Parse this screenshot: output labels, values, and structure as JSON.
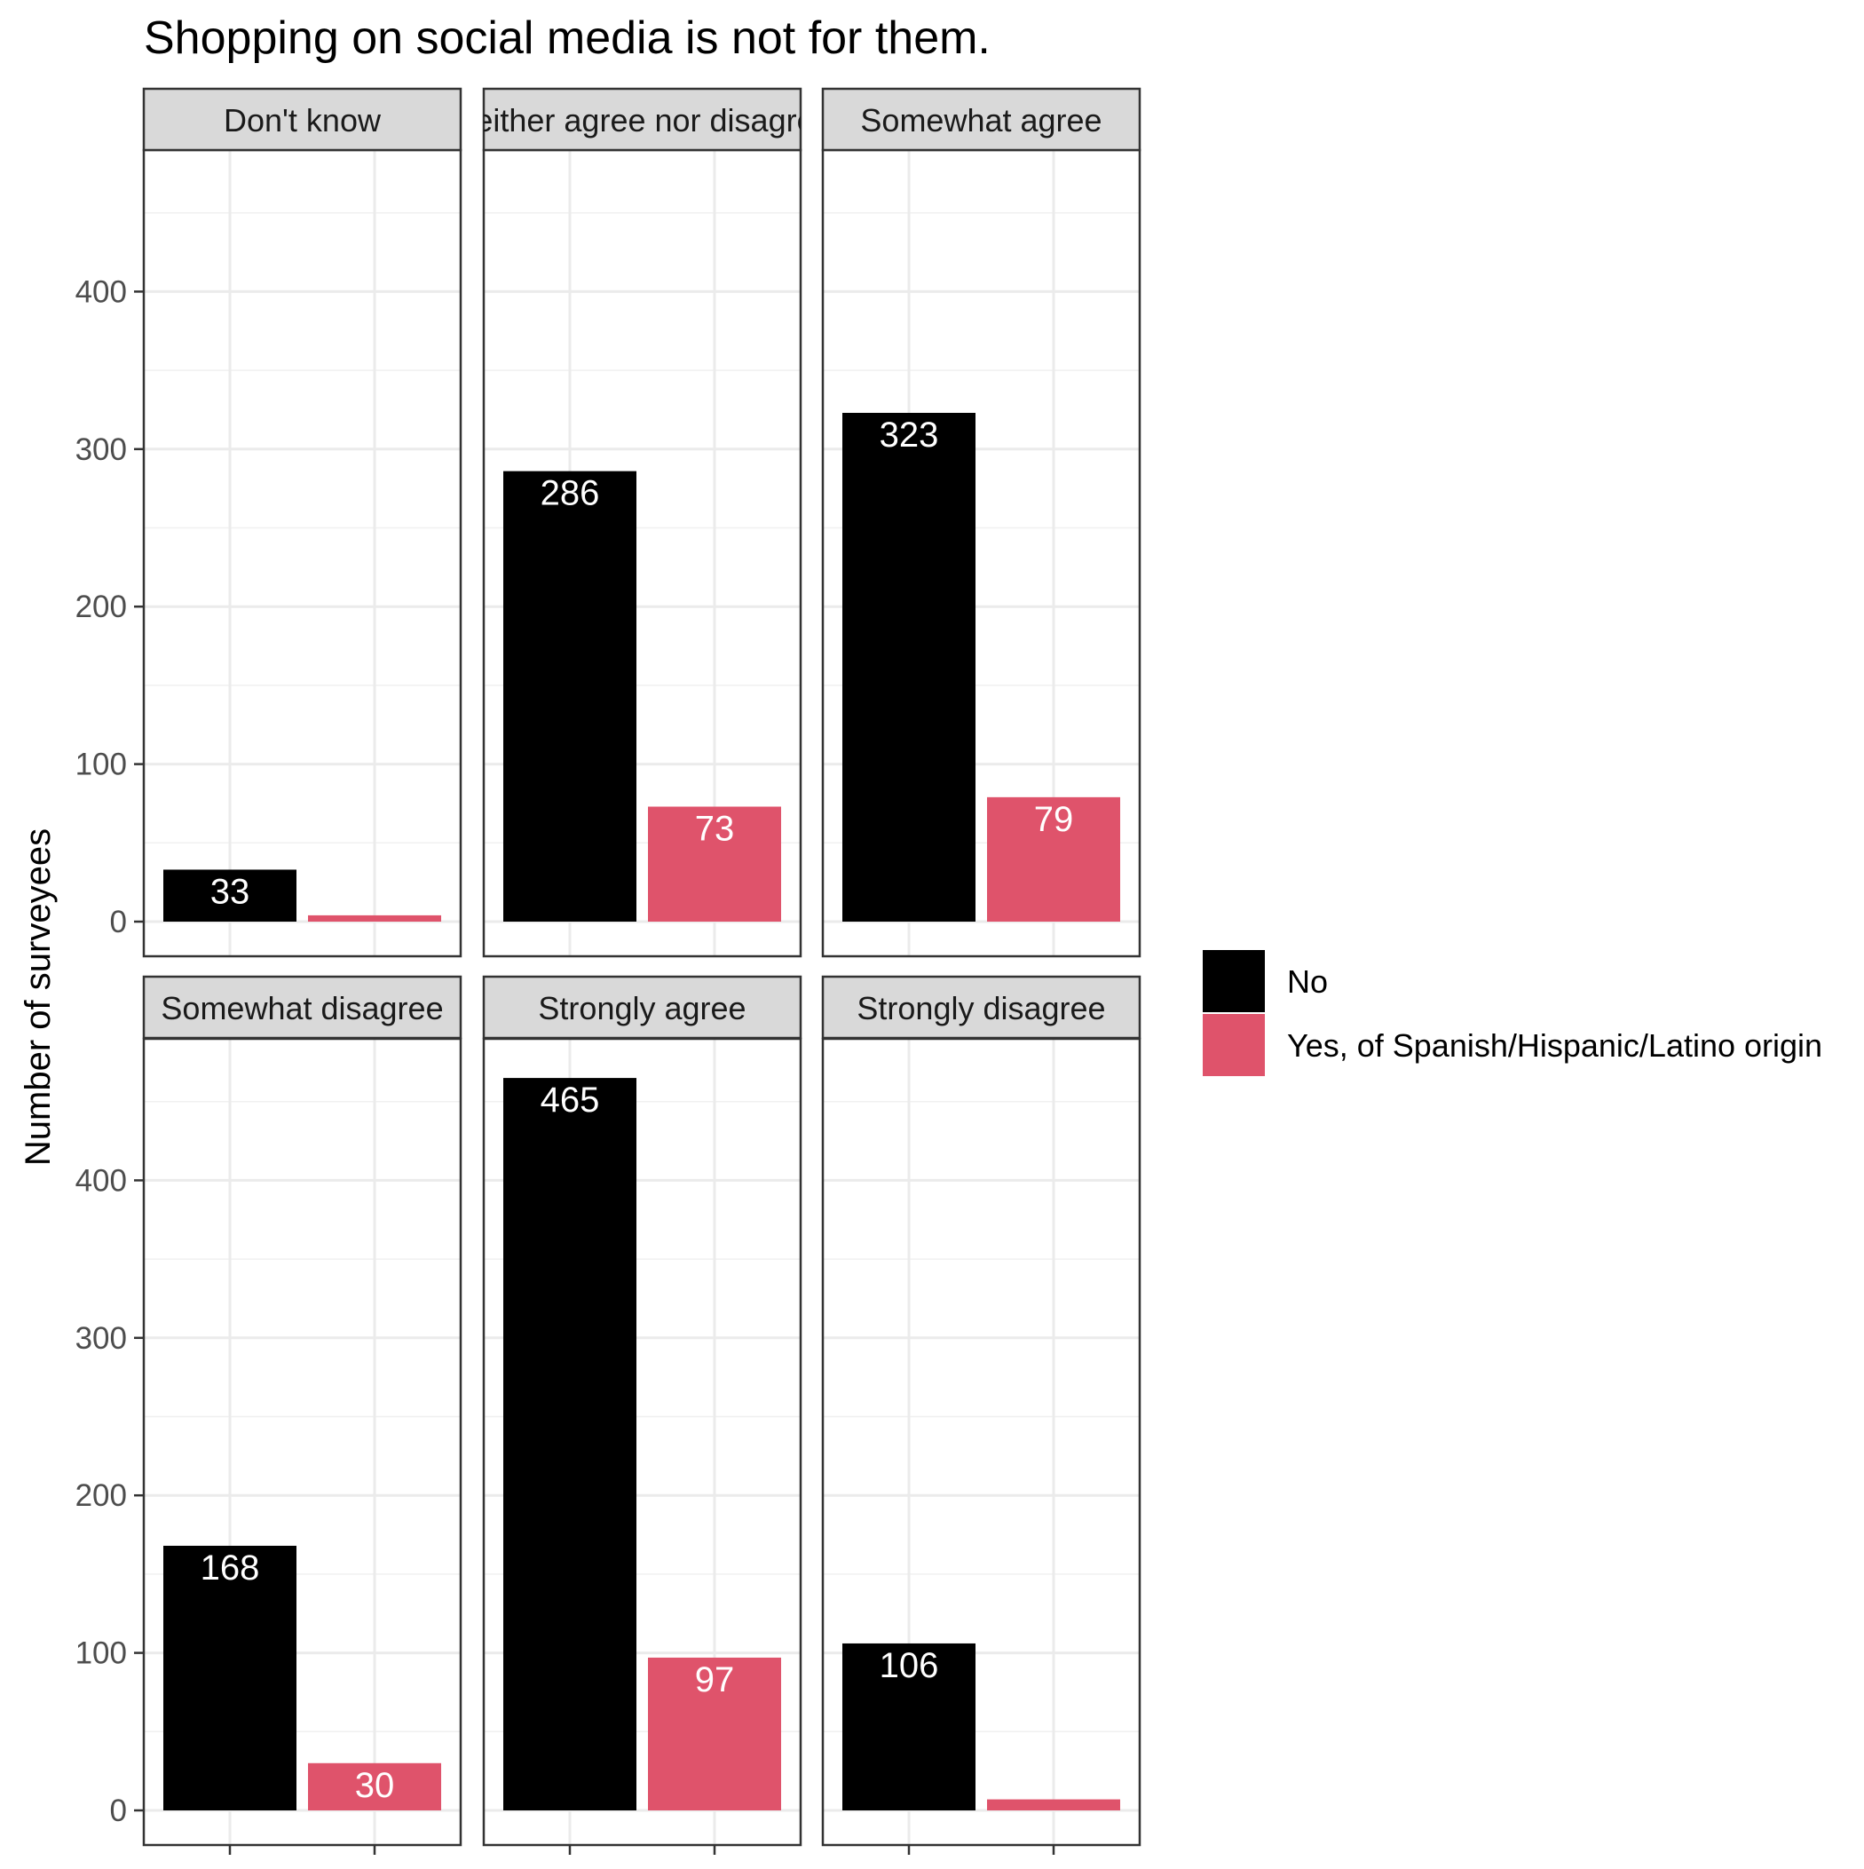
{
  "chart_data": {
    "type": "bar",
    "title": "Shopping on social media is not for them.",
    "ylabel": "Number of surveyees",
    "xlabel": "",
    "ylim": [
      0,
      490
    ],
    "yticks": [
      0,
      100,
      200,
      300,
      400
    ],
    "grid": true,
    "legend_position": "right",
    "series": [
      {
        "name": "No",
        "color": "#000000"
      },
      {
        "name": "Yes, of Spanish/Hispanic/Latino origin",
        "color": "#DF536B"
      }
    ],
    "facets": [
      {
        "label": "Don't know",
        "values": [
          33,
          4
        ],
        "labels": [
          "33",
          ""
        ]
      },
      {
        "label": "Neither agree nor disagree",
        "values": [
          286,
          73
        ],
        "labels": [
          "286",
          "73"
        ]
      },
      {
        "label": "Somewhat agree",
        "values": [
          323,
          79
        ],
        "labels": [
          "323",
          "79"
        ]
      },
      {
        "label": "Somewhat disagree",
        "values": [
          168,
          30
        ],
        "labels": [
          "168",
          "30"
        ]
      },
      {
        "label": "Strongly agree",
        "values": [
          465,
          97
        ],
        "labels": [
          "465",
          "97"
        ]
      },
      {
        "label": "Strongly disagree",
        "values": [
          106,
          7
        ],
        "labels": [
          "106",
          ""
        ]
      }
    ]
  }
}
